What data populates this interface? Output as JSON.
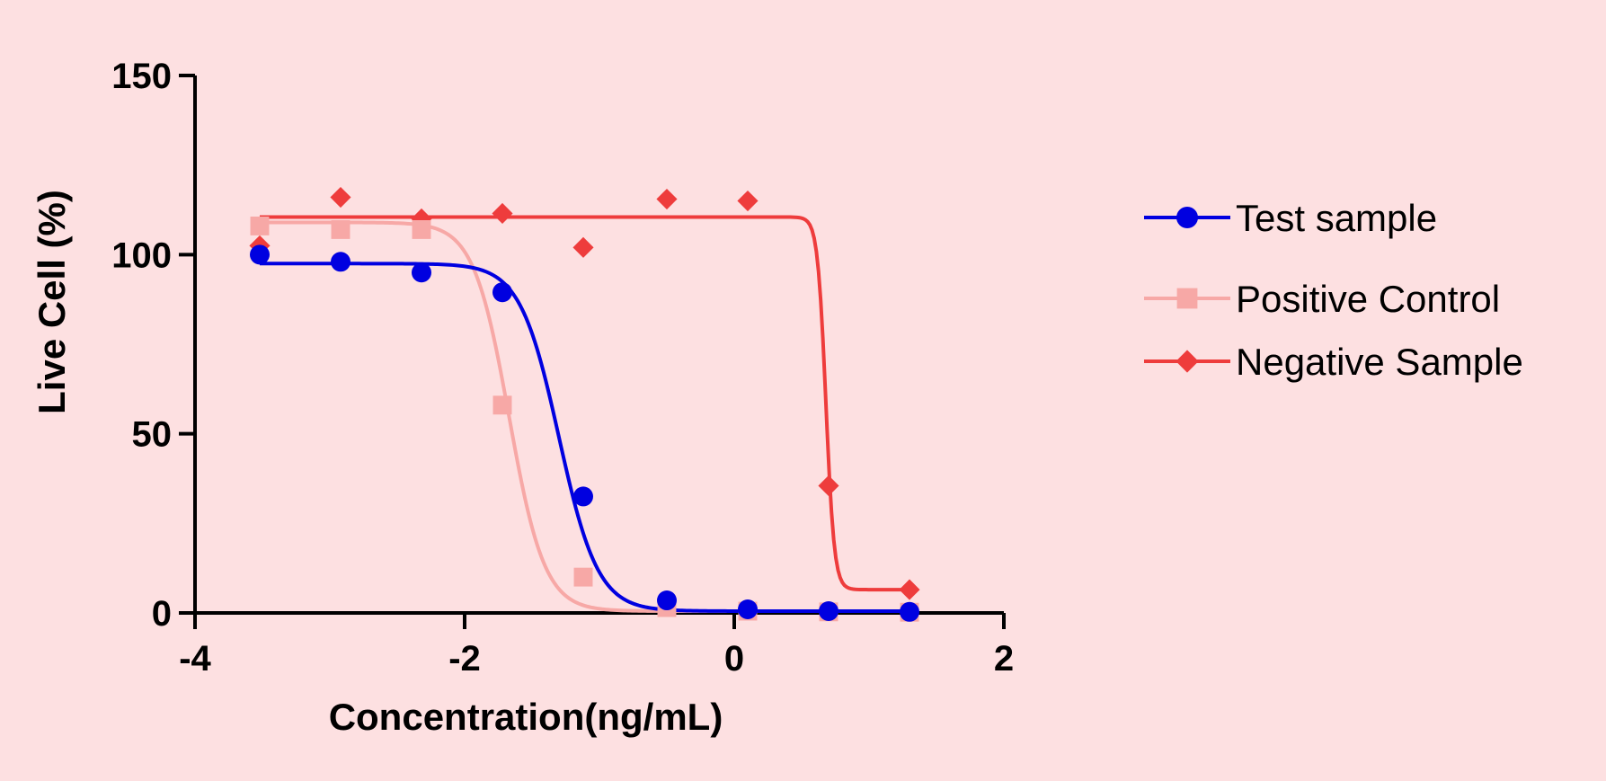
{
  "chart_data": {
    "type": "scatter",
    "title": "",
    "xlabel": "Concentration(ng/mL)",
    "ylabel": "Live Cell (%)",
    "xlim": [
      -4,
      2
    ],
    "ylim": [
      0,
      150
    ],
    "xticks": [
      -4,
      -2,
      0,
      2
    ],
    "yticks": [
      0,
      50,
      100,
      150
    ],
    "xtick_labels": [
      "-4",
      "-2",
      "0",
      "2"
    ],
    "ytick_labels": [
      "0",
      "50",
      "100",
      "150"
    ],
    "grid": false,
    "legend_position": "right",
    "series": [
      {
        "name": "Test sample",
        "marker": "circle",
        "color": "#0000e0",
        "points": [
          {
            "x": -3.52,
            "y": 100
          },
          {
            "x": -2.92,
            "y": 98
          },
          {
            "x": -2.32,
            "y": 95
          },
          {
            "x": -1.72,
            "y": 89.5
          },
          {
            "x": -1.12,
            "y": 32.5
          },
          {
            "x": -0.5,
            "y": 3.5
          },
          {
            "x": 0.1,
            "y": 1
          },
          {
            "x": 0.7,
            "y": 0.5
          },
          {
            "x": 1.3,
            "y": 0.3
          }
        ],
        "fit": {
          "bottom": 0.5,
          "top": 97.5,
          "logIC50": -1.3,
          "hill": 3.0
        }
      },
      {
        "name": "Positive Control",
        "marker": "square",
        "color": "#f7a8a6",
        "points": [
          {
            "x": -3.52,
            "y": 108
          },
          {
            "x": -2.92,
            "y": 107
          },
          {
            "x": -2.32,
            "y": 107
          },
          {
            "x": -1.72,
            "y": 58
          },
          {
            "x": -1.12,
            "y": 10
          },
          {
            "x": -0.5,
            "y": 1.5
          },
          {
            "x": 0.1,
            "y": 0.5
          },
          {
            "x": 0.7,
            "y": 0.3
          },
          {
            "x": 1.3,
            "y": 0.2
          }
        ],
        "fit": {
          "bottom": 0.5,
          "top": 109,
          "logIC50": -1.67,
          "hill": 3.3
        }
      },
      {
        "name": "Negative Sample",
        "marker": "diamond",
        "color": "#ee3c3c",
        "points": [
          {
            "x": -3.52,
            "y": 102.5
          },
          {
            "x": -2.92,
            "y": 116
          },
          {
            "x": -2.32,
            "y": 110
          },
          {
            "x": -1.72,
            "y": 111.5
          },
          {
            "x": -1.12,
            "y": 102
          },
          {
            "x": -0.5,
            "y": 115.5
          },
          {
            "x": 0.1,
            "y": 115
          },
          {
            "x": 0.7,
            "y": 35.5
          },
          {
            "x": 1.3,
            "y": 6.5
          }
        ],
        "fit": {
          "bottom": 6.5,
          "top": 110.5,
          "logIC50": 0.68,
          "hill": 14
        }
      }
    ]
  }
}
